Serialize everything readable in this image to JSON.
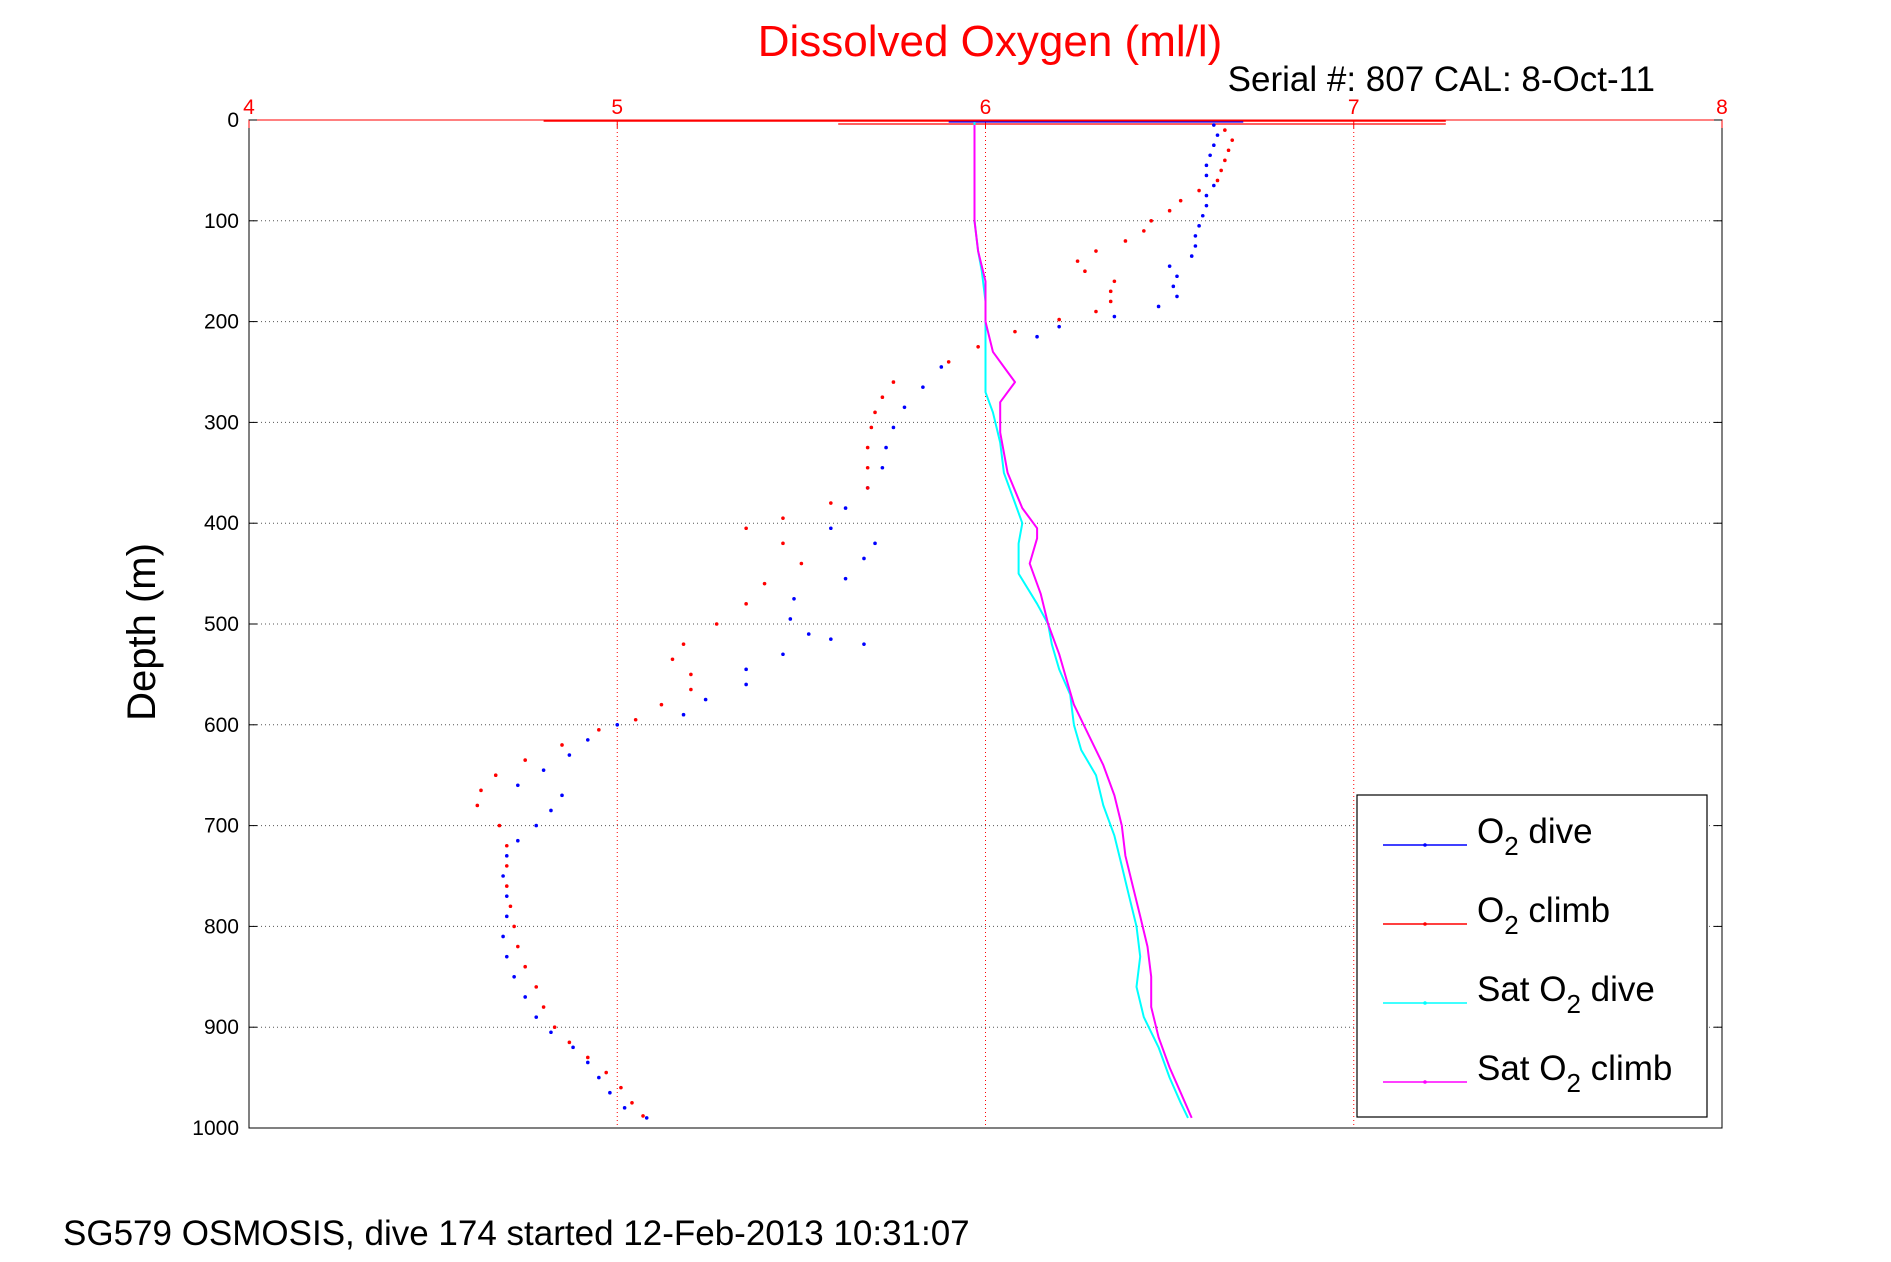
{
  "page": {
    "title": "Dissolved Oxygen (ml/l)",
    "serial": "Serial #: 807  CAL: 8-Oct-11",
    "footer": "SG579 OSMOSIS, dive 174 started 12-Feb-2013 10:31:07"
  },
  "chart_data": {
    "type": "line",
    "title": "Dissolved Oxygen (ml/l)",
    "xlabel": "",
    "ylabel": "Depth (m)",
    "xlim": [
      4,
      8
    ],
    "ylim": [
      0,
      1000
    ],
    "y_reversed": true,
    "x_axis_position": "top",
    "xticks": [
      4,
      5,
      6,
      7,
      8
    ],
    "yticks": [
      0,
      100,
      200,
      300,
      400,
      500,
      600,
      700,
      800,
      900,
      1000
    ],
    "grid": true,
    "legend_position": "bottom-right",
    "colors": {
      "title": "#ff0000",
      "x_axis": "#ff0000",
      "o2_dive": "#0000ff",
      "o2_climb": "#ff0000",
      "sat_dive": "#00ffff",
      "sat_climb": "#ff00ff"
    },
    "series": [
      {
        "name": "O2 dive",
        "legend": {
          "base": "O",
          "sub": "2",
          "rest": " dive"
        },
        "style": "dots",
        "color": "#0000ff",
        "points": [
          [
            6.62,
            5
          ],
          [
            6.63,
            15
          ],
          [
            6.62,
            25
          ],
          [
            6.61,
            35
          ],
          [
            6.6,
            45
          ],
          [
            6.6,
            55
          ],
          [
            6.62,
            65
          ],
          [
            6.6,
            75
          ],
          [
            6.6,
            85
          ],
          [
            6.59,
            95
          ],
          [
            6.58,
            105
          ],
          [
            6.57,
            115
          ],
          [
            6.57,
            125
          ],
          [
            6.56,
            135
          ],
          [
            6.5,
            145
          ],
          [
            6.52,
            155
          ],
          [
            6.51,
            165
          ],
          [
            6.52,
            175
          ],
          [
            6.47,
            185
          ],
          [
            6.35,
            195
          ],
          [
            6.2,
            205
          ],
          [
            6.14,
            215
          ],
          [
            5.88,
            245
          ],
          [
            5.83,
            265
          ],
          [
            5.78,
            285
          ],
          [
            5.75,
            305
          ],
          [
            5.73,
            325
          ],
          [
            5.72,
            345
          ],
          [
            5.68,
            365
          ],
          [
            5.62,
            385
          ],
          [
            5.58,
            405
          ],
          [
            5.7,
            420
          ],
          [
            5.67,
            435
          ],
          [
            5.62,
            455
          ],
          [
            5.48,
            475
          ],
          [
            5.47,
            495
          ],
          [
            5.52,
            510
          ],
          [
            5.58,
            515
          ],
          [
            5.67,
            520
          ],
          [
            5.45,
            530
          ],
          [
            5.35,
            545
          ],
          [
            5.35,
            560
          ],
          [
            5.24,
            575
          ],
          [
            5.18,
            590
          ],
          [
            5.0,
            600
          ],
          [
            4.92,
            615
          ],
          [
            4.87,
            630
          ],
          [
            4.8,
            645
          ],
          [
            4.73,
            660
          ],
          [
            4.85,
            670
          ],
          [
            4.82,
            685
          ],
          [
            4.78,
            700
          ],
          [
            4.73,
            715
          ],
          [
            4.7,
            730
          ],
          [
            4.69,
            750
          ],
          [
            4.7,
            770
          ],
          [
            4.7,
            790
          ],
          [
            4.69,
            810
          ],
          [
            4.7,
            830
          ],
          [
            4.72,
            850
          ],
          [
            4.75,
            870
          ],
          [
            4.78,
            890
          ],
          [
            4.82,
            905
          ],
          [
            4.88,
            920
          ],
          [
            4.92,
            935
          ],
          [
            4.95,
            950
          ],
          [
            4.98,
            965
          ],
          [
            5.02,
            980
          ],
          [
            5.08,
            990
          ]
        ]
      },
      {
        "name": "O2 climb",
        "legend": {
          "base": "O",
          "sub": "2",
          "rest": " climb"
        },
        "style": "dots",
        "color": "#ff0000",
        "points": [
          [
            6.65,
            10
          ],
          [
            6.67,
            20
          ],
          [
            6.66,
            30
          ],
          [
            6.65,
            40
          ],
          [
            6.64,
            50
          ],
          [
            6.63,
            60
          ],
          [
            6.58,
            70
          ],
          [
            6.53,
            80
          ],
          [
            6.5,
            90
          ],
          [
            6.45,
            100
          ],
          [
            6.43,
            110
          ],
          [
            6.38,
            120
          ],
          [
            6.3,
            130
          ],
          [
            6.25,
            140
          ],
          [
            6.27,
            150
          ],
          [
            6.35,
            160
          ],
          [
            6.34,
            170
          ],
          [
            6.34,
            180
          ],
          [
            6.3,
            190
          ],
          [
            6.2,
            198
          ],
          [
            6.08,
            210
          ],
          [
            5.98,
            225
          ],
          [
            5.9,
            240
          ],
          [
            5.75,
            260
          ],
          [
            5.72,
            275
          ],
          [
            5.7,
            290
          ],
          [
            5.69,
            305
          ],
          [
            5.68,
            325
          ],
          [
            5.68,
            345
          ],
          [
            5.68,
            365
          ],
          [
            5.58,
            380
          ],
          [
            5.45,
            395
          ],
          [
            5.35,
            405
          ],
          [
            5.45,
            420
          ],
          [
            5.5,
            440
          ],
          [
            5.4,
            460
          ],
          [
            5.35,
            480
          ],
          [
            5.27,
            500
          ],
          [
            5.18,
            520
          ],
          [
            5.15,
            535
          ],
          [
            5.2,
            550
          ],
          [
            5.2,
            565
          ],
          [
            5.12,
            580
          ],
          [
            5.05,
            595
          ],
          [
            4.95,
            605
          ],
          [
            4.85,
            620
          ],
          [
            4.75,
            635
          ],
          [
            4.67,
            650
          ],
          [
            4.63,
            665
          ],
          [
            4.62,
            680
          ],
          [
            4.68,
            700
          ],
          [
            4.7,
            720
          ],
          [
            4.7,
            740
          ],
          [
            4.7,
            760
          ],
          [
            4.71,
            780
          ],
          [
            4.72,
            800
          ],
          [
            4.73,
            820
          ],
          [
            4.75,
            840
          ],
          [
            4.78,
            860
          ],
          [
            4.8,
            880
          ],
          [
            4.83,
            900
          ],
          [
            4.87,
            915
          ],
          [
            4.92,
            930
          ],
          [
            4.97,
            945
          ],
          [
            5.01,
            960
          ],
          [
            5.04,
            975
          ],
          [
            5.07,
            988
          ]
        ]
      },
      {
        "name": "Sat O2 dive",
        "legend": {
          "base": "Sat O",
          "sub": "2",
          "rest": " dive"
        },
        "style": "line",
        "color": "#00ffff",
        "points": [
          [
            5.97,
            2
          ],
          [
            5.97,
            50
          ],
          [
            5.97,
            100
          ],
          [
            5.98,
            130
          ],
          [
            5.99,
            150
          ],
          [
            6.0,
            180
          ],
          [
            6.0,
            220
          ],
          [
            6.0,
            250
          ],
          [
            6.0,
            270
          ],
          [
            6.02,
            290
          ],
          [
            6.04,
            320
          ],
          [
            6.05,
            350
          ],
          [
            6.08,
            380
          ],
          [
            6.1,
            400
          ],
          [
            6.09,
            420
          ],
          [
            6.09,
            450
          ],
          [
            6.14,
            480
          ],
          [
            6.17,
            500
          ],
          [
            6.18,
            520
          ],
          [
            6.2,
            545
          ],
          [
            6.23,
            570
          ],
          [
            6.24,
            600
          ],
          [
            6.26,
            625
          ],
          [
            6.3,
            650
          ],
          [
            6.32,
            680
          ],
          [
            6.35,
            710
          ],
          [
            6.37,
            740
          ],
          [
            6.39,
            770
          ],
          [
            6.41,
            800
          ],
          [
            6.42,
            830
          ],
          [
            6.41,
            860
          ],
          [
            6.43,
            890
          ],
          [
            6.47,
            920
          ],
          [
            6.5,
            950
          ],
          [
            6.53,
            975
          ],
          [
            6.55,
            990
          ]
        ]
      },
      {
        "name": "Sat O2 climb",
        "legend": {
          "base": "Sat O",
          "sub": "2",
          "rest": " climb"
        },
        "style": "line",
        "color": "#ff00ff",
        "points": [
          [
            5.97,
            5
          ],
          [
            5.97,
            50
          ],
          [
            5.97,
            100
          ],
          [
            5.98,
            130
          ],
          [
            6.0,
            160
          ],
          [
            6.0,
            200
          ],
          [
            6.02,
            230
          ],
          [
            6.06,
            250
          ],
          [
            6.08,
            260
          ],
          [
            6.04,
            280
          ],
          [
            6.04,
            310
          ],
          [
            6.06,
            350
          ],
          [
            6.1,
            385
          ],
          [
            6.14,
            405
          ],
          [
            6.14,
            415
          ],
          [
            6.12,
            440
          ],
          [
            6.15,
            470
          ],
          [
            6.17,
            500
          ],
          [
            6.2,
            530
          ],
          [
            6.22,
            555
          ],
          [
            6.24,
            580
          ],
          [
            6.28,
            610
          ],
          [
            6.32,
            640
          ],
          [
            6.35,
            670
          ],
          [
            6.37,
            700
          ],
          [
            6.38,
            730
          ],
          [
            6.4,
            760
          ],
          [
            6.42,
            790
          ],
          [
            6.44,
            820
          ],
          [
            6.45,
            850
          ],
          [
            6.45,
            880
          ],
          [
            6.47,
            910
          ],
          [
            6.5,
            940
          ],
          [
            6.53,
            965
          ],
          [
            6.56,
            990
          ]
        ]
      }
    ]
  }
}
